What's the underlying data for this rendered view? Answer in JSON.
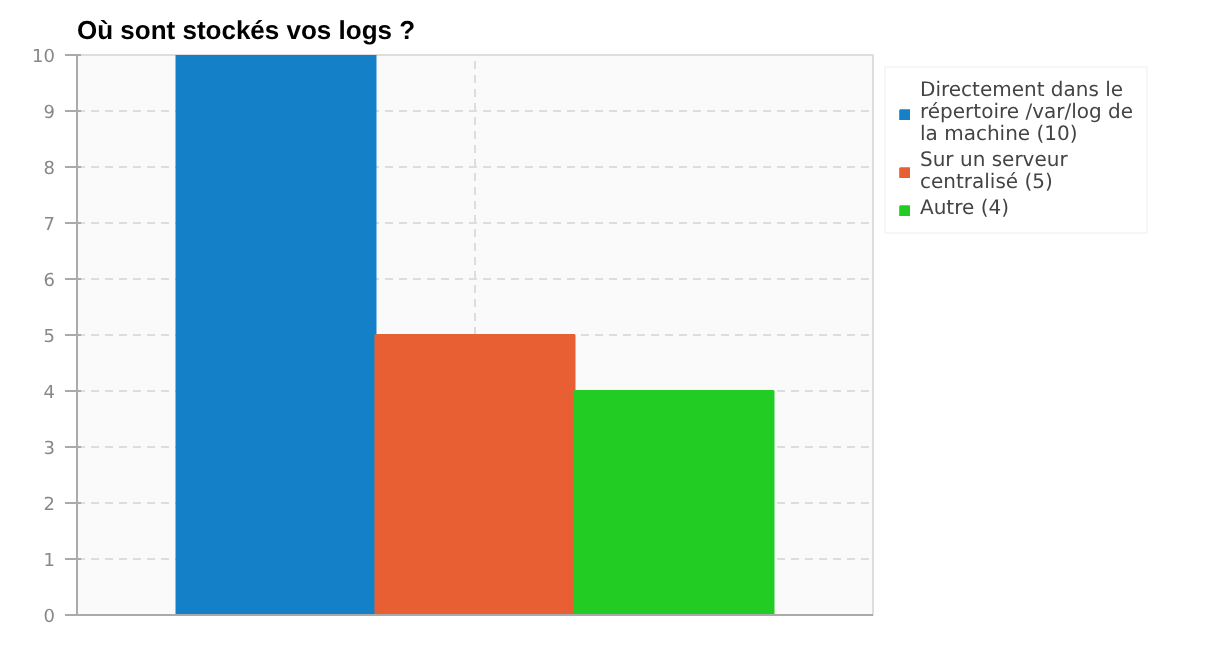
{
  "chart_data": {
    "type": "bar",
    "title": "Où sont stockés vos logs ?",
    "categories": [
      null
    ],
    "series": [
      {
        "name": "Directement dans le répertoire /var/log de la machine (10)",
        "color": "#1480c8",
        "values": [
          10
        ]
      },
      {
        "name": "Sur un serveur centralisé (5)",
        "color": "#e85f33",
        "values": [
          5
        ]
      },
      {
        "name": "Autre (4)",
        "color": "#22cc22",
        "values": [
          4
        ]
      }
    ],
    "ylim": [
      0,
      10
    ],
    "yticks": [
      0,
      1,
      2,
      3,
      4,
      5,
      6,
      7,
      8,
      9,
      10
    ],
    "grid": true,
    "legend": "right"
  }
}
